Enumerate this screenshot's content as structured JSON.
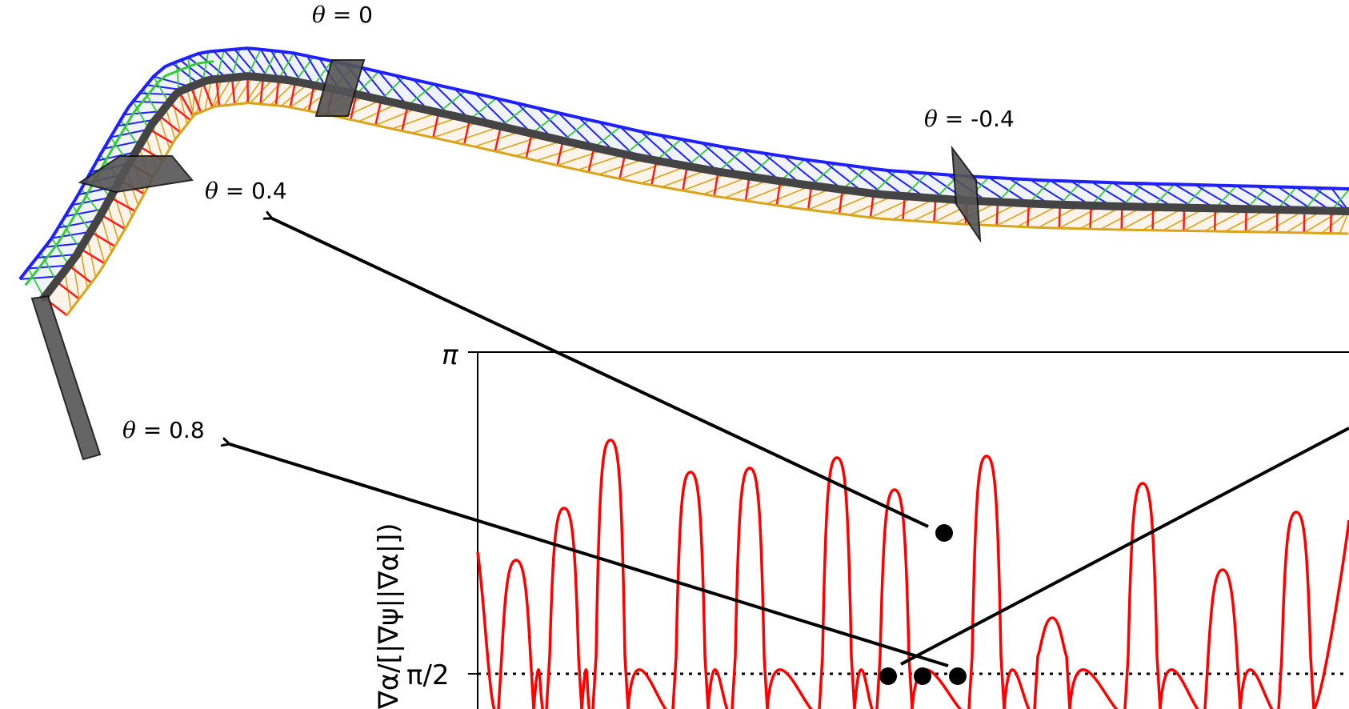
{
  "flux_tube": {
    "labels": [
      {
        "theta": "θ",
        "eq": " = 0"
      },
      {
        "theta": "θ",
        "eq": " = -0.4"
      },
      {
        "theta": "θ",
        "eq": " = 0.4"
      },
      {
        "theta": "θ",
        "eq": " = 0.8"
      }
    ],
    "colors": {
      "blue_edge": "#1f1fff",
      "red_edge": "#ff1a1a",
      "green_edge": "#33cc33",
      "orange_edge": "#d9a31a",
      "centerline": "#444444",
      "cross_section": "#555555"
    }
  },
  "plot": {
    "y_ticks": [
      "π",
      "π/2"
    ],
    "y_label": "∇α/[|∇ψ||∇α|])",
    "line_color": "#ff0000",
    "reference_line": "dotted",
    "marker_color": "#000000"
  }
}
